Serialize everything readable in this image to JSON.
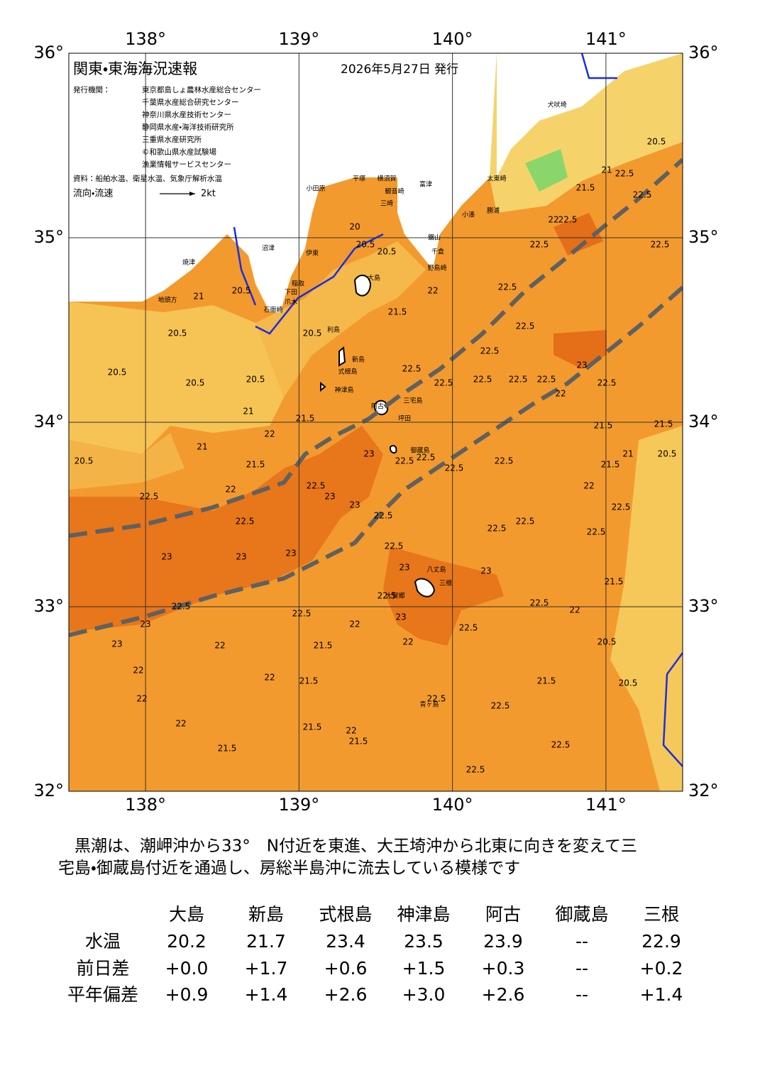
{
  "map": {
    "xlim": [
      137.5,
      141.5
    ],
    "ylim": [
      32,
      36
    ],
    "xticks": [
      {
        "value": 138,
        "label": "138°"
      },
      {
        "value": 139,
        "label": "139°"
      },
      {
        "value": 140,
        "label": "140°"
      },
      {
        "value": 141,
        "label": "141°"
      }
    ],
    "yticks": [
      {
        "value": 32,
        "label": "32°"
      },
      {
        "value": 33,
        "label": "33°"
      },
      {
        "value": 34,
        "label": "34°"
      },
      {
        "value": 35,
        "label": "35°"
      },
      {
        "value": 36,
        "label": "36°"
      }
    ],
    "contour_labels": [
      21,
      20.5,
      20.5,
      20.5,
      20.5,
      20.5,
      20.5,
      21,
      20.5,
      21,
      22,
      22.5,
      21.5,
      22,
      22.5,
      23,
      23,
      23,
      22.5,
      23,
      23,
      23,
      22.5,
      22.5,
      22.5,
      22.5,
      22.5,
      22.5,
      22.5,
      22.5,
      22.5,
      22.5,
      22.5,
      22.5,
      22.5,
      22,
      21.5,
      21.5,
      21.5,
      22,
      21.5,
      21.5,
      22,
      22,
      22,
      22,
      22,
      23,
      23,
      22.5,
      22.5,
      22,
      21.5,
      20.5,
      20.5,
      21.5,
      22,
      22.5,
      22.5,
      21,
      20.5,
      21.5,
      21.5,
      21.5,
      22,
      23,
      22.5,
      22.5,
      22.5,
      22.5,
      22.5,
      22.5,
      22.5,
      22.5,
      22.5,
      22.5,
      22,
      22.5,
      22.5,
      22.5,
      22.5,
      21.5,
      21,
      20.5,
      21.5,
      22,
      21.5,
      20,
      20.5,
      20.5,
      22.5,
      23,
      23,
      23,
      22.5,
      22
    ],
    "places": [
      "小田原",
      "平塚",
      "横須賀",
      "観音崎",
      "三崎",
      "富津",
      "鋸山",
      "千倉",
      "野島崎",
      "小湊",
      "勝浦",
      "太東崎",
      "犬吠埼",
      "沼津",
      "伊東",
      "焼津",
      "地頭方",
      "稲取",
      "下田",
      "爪木",
      "石廊崎",
      "大島",
      "利島",
      "新島",
      "式根島",
      "神津島",
      "三宅島",
      "阿古",
      "坪田",
      "御蔵島",
      "八丈島",
      "大賀郷",
      "三根",
      "青ヶ島"
    ]
  },
  "header": {
    "title": "関東・東海海況速報",
    "date": "2026年5月27日 発行",
    "issuer_label": "発行機関：",
    "issuers": [
      "東京都島しょ農林水産総合センター",
      "千葉県水産総合研究センター",
      "神奈川県水産技術センター",
      "静岡県水産・海洋技術研究所",
      "三重県水産研究所",
      "©和歌山県水産試験場",
      "漁業情報サービスセンター"
    ],
    "source": "資料：船舶水温、衛星水温、気象庁解析水温",
    "flow_label": "流向・流速",
    "flow_scale": "2kt"
  },
  "description": [
    "　黒潮は、潮岬沖から33°　N付近を東進、大王埼沖から北東に向きを変えて三",
    "宅島・御蔵島付近を通過し、房総半島沖に流去している模様です"
  ],
  "table": {
    "columns": [
      "大島",
      "新島",
      "式根島",
      "神津島",
      "阿古",
      "御蔵島",
      "三根"
    ],
    "rows": [
      {
        "label": "水温",
        "values": [
          "20.2",
          "21.7",
          "23.4",
          "23.5",
          "23.9",
          "--",
          "22.9"
        ]
      },
      {
        "label": "前日差",
        "values": [
          "+0.0",
          "+1.7",
          "+0.6",
          "+1.5",
          "+0.3",
          "--",
          "+0.2"
        ]
      },
      {
        "label": "平年偏差",
        "values": [
          "+0.9",
          "+1.4",
          "+2.6",
          "+3.0",
          "+2.6",
          "--",
          "+1.4"
        ]
      }
    ]
  }
}
